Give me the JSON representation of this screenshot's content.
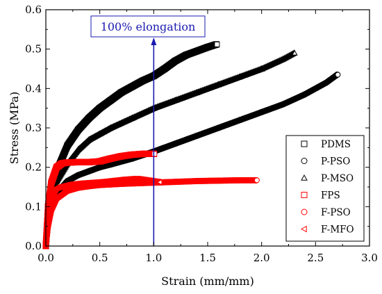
{
  "chart_data": {
    "type": "line",
    "xlabel": "Strain (mm/mm)",
    "ylabel": "Stress (MPa)",
    "xlim": [
      0,
      3.0
    ],
    "ylim": [
      0,
      0.6
    ],
    "xticks": [
      0.0,
      0.5,
      1.0,
      1.5,
      2.0,
      2.5,
      3.0
    ],
    "xtick_labels": [
      "0.0",
      "0.5",
      "1.0",
      "1.5",
      "2.0",
      "2.5",
      "3.0"
    ],
    "yticks": [
      0.0,
      0.1,
      0.2,
      0.3,
      0.4,
      0.5,
      0.6
    ],
    "ytick_labels": [
      "0.0",
      "0.1",
      "0.2",
      "0.3",
      "0.4",
      "0.5",
      "0.6"
    ],
    "grid": false,
    "legend_position": "lower-right",
    "annotation": {
      "text": "100% elongation",
      "x": 1.0,
      "color": "#1a1ab0"
    },
    "series": [
      {
        "name": "PDMS",
        "marker": "square",
        "color": "#000000",
        "x": [
          0,
          0.02,
          0.05,
          0.1,
          0.2,
          0.3,
          0.4,
          0.5,
          0.6,
          0.7,
          0.8,
          0.9,
          1.0,
          1.1,
          1.2,
          1.3,
          1.4,
          1.5,
          1.58
        ],
        "y": [
          0.0,
          0.09,
          0.14,
          0.19,
          0.255,
          0.295,
          0.325,
          0.35,
          0.37,
          0.39,
          0.405,
          0.42,
          0.432,
          0.45,
          0.47,
          0.485,
          0.495,
          0.505,
          0.512
        ]
      },
      {
        "name": "P-PSO",
        "marker": "circle",
        "color": "#000000",
        "x": [
          0,
          0.02,
          0.05,
          0.1,
          0.2,
          0.3,
          0.4,
          0.5,
          0.6,
          0.8,
          1.0,
          1.2,
          1.4,
          1.6,
          1.8,
          2.0,
          2.2,
          2.4,
          2.6,
          2.7
        ],
        "y": [
          0.0,
          0.06,
          0.1,
          0.135,
          0.165,
          0.18,
          0.19,
          0.2,
          0.207,
          0.222,
          0.24,
          0.26,
          0.28,
          0.3,
          0.32,
          0.34,
          0.36,
          0.385,
          0.415,
          0.435
        ]
      },
      {
        "name": "P-MSO",
        "marker": "triangle-up",
        "color": "#000000",
        "x": [
          0,
          0.02,
          0.05,
          0.1,
          0.2,
          0.3,
          0.4,
          0.5,
          0.6,
          0.8,
          1.0,
          1.2,
          1.4,
          1.6,
          1.8,
          2.0,
          2.2,
          2.3
        ],
        "y": [
          0.0,
          0.07,
          0.12,
          0.165,
          0.21,
          0.245,
          0.27,
          0.285,
          0.3,
          0.325,
          0.35,
          0.37,
          0.39,
          0.41,
          0.43,
          0.45,
          0.475,
          0.49
        ]
      },
      {
        "name": "FPS",
        "marker": "square",
        "color": "#ff0000",
        "x": [
          0,
          0.02,
          0.05,
          0.1,
          0.15,
          0.2,
          0.3,
          0.4,
          0.5,
          0.6,
          0.7,
          0.8,
          0.9,
          1.0
        ],
        "y": [
          0.0,
          0.1,
          0.16,
          0.2,
          0.21,
          0.212,
          0.213,
          0.213,
          0.215,
          0.222,
          0.228,
          0.232,
          0.234,
          0.234
        ]
      },
      {
        "name": "F-PSO",
        "marker": "circle",
        "color": "#ff0000",
        "x": [
          0,
          0.02,
          0.05,
          0.1,
          0.2,
          0.3,
          0.4,
          0.5,
          0.7,
          0.9,
          1.0,
          1.2,
          1.4,
          1.6,
          1.8,
          1.95
        ],
        "y": [
          0.0,
          0.05,
          0.09,
          0.12,
          0.14,
          0.148,
          0.152,
          0.155,
          0.158,
          0.16,
          0.161,
          0.163,
          0.165,
          0.166,
          0.167,
          0.167
        ]
      },
      {
        "name": "F-MFO",
        "marker": "triangle-left",
        "color": "#ff0000",
        "x": [
          0,
          0.02,
          0.05,
          0.1,
          0.2,
          0.3,
          0.4,
          0.5,
          0.6,
          0.7,
          0.8,
          0.85,
          0.9,
          0.95,
          1.0,
          1.05
        ],
        "y": [
          0.0,
          0.08,
          0.125,
          0.148,
          0.155,
          0.158,
          0.16,
          0.162,
          0.165,
          0.168,
          0.17,
          0.17,
          0.168,
          0.166,
          0.164,
          0.162
        ]
      }
    ]
  }
}
